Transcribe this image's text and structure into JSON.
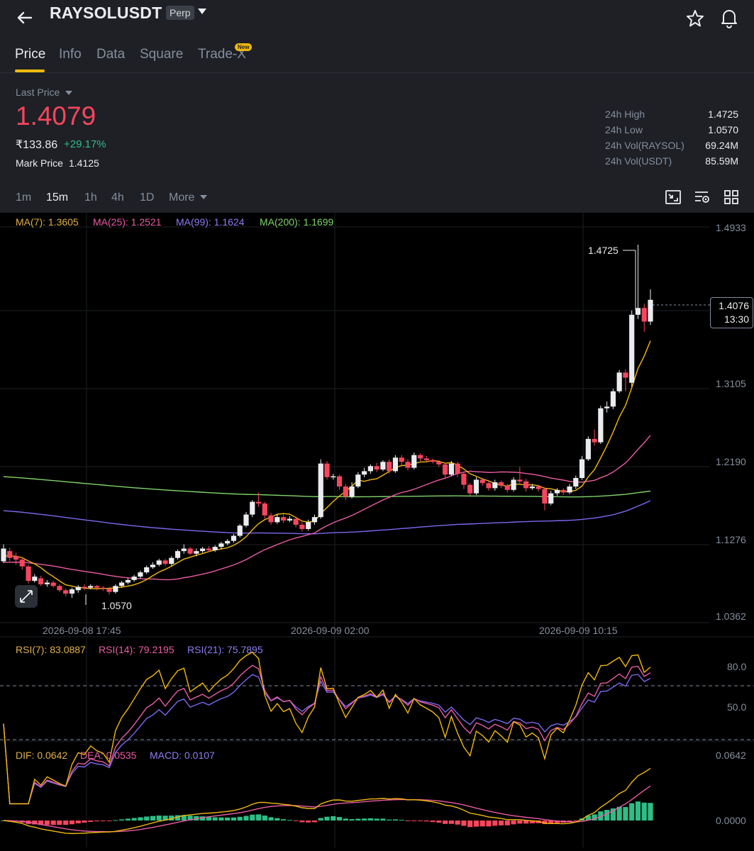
{
  "header": {
    "symbol": "RAYSOLUSDT",
    "contract_type": "Perp"
  },
  "tabs": [
    {
      "label": "Price",
      "active": true
    },
    {
      "label": "Info",
      "active": false
    },
    {
      "label": "Data",
      "active": false
    },
    {
      "label": "Square",
      "active": false
    },
    {
      "label": "Trade-X",
      "active": false,
      "badge": "New"
    }
  ],
  "price": {
    "last_price_label": "Last Price",
    "last_price": "1.4079",
    "fiat_price": "₹133.86",
    "change_pct": "+29.17%",
    "mark_price_label": "Mark Price",
    "mark_price": "1.4125"
  },
  "stats": [
    {
      "label": "24h High",
      "value": "1.4725"
    },
    {
      "label": "24h Low",
      "value": "1.0570"
    },
    {
      "label": "24h Vol(RAYSOL)",
      "value": "69.24M"
    },
    {
      "label": "24h Vol(USDT)",
      "value": "85.59M"
    }
  ],
  "timeframes": [
    {
      "label": "1m",
      "active": false
    },
    {
      "label": "15m",
      "active": true
    },
    {
      "label": "1h",
      "active": false
    },
    {
      "label": "4h",
      "active": false
    },
    {
      "label": "1D",
      "active": false
    },
    {
      "label": "More",
      "active": false
    }
  ],
  "tool_icons": [
    "chart-type-icon",
    "indicator-settings-icon",
    "layout-grid-icon"
  ],
  "colors": {
    "up": "#2ebd85",
    "down": "#f6465d",
    "accent": "#f0b90b",
    "ma7": "#f0b90b",
    "ma25": "#e85ca3",
    "ma99": "#7b68ee",
    "ma200": "#7fd36a"
  },
  "ma_legend": [
    {
      "label": "MA(7): 1.3605",
      "color": "#e0b04a"
    },
    {
      "label": "MA(25): 1.2521",
      "color": "#e85ca3"
    },
    {
      "label": "MA(99): 1.1624",
      "color": "#8d7cf0"
    },
    {
      "label": "MA(200): 1.1699",
      "color": "#7fd36a"
    }
  ],
  "current_price_box": {
    "price": "1.4076",
    "countdown": "13:30"
  },
  "chart_annotations": {
    "high": "1.4725",
    "low": "1.0570"
  },
  "chart_data": [
    {
      "type": "candlestick",
      "title": "",
      "y_axis_ticks": [
        "1.4933",
        "1.4076",
        "1.3105",
        "1.2190",
        "1.1276",
        "1.0362"
      ],
      "x_axis_ticks": [
        "2026-09-08 17:45",
        "2026-09-09 02:00",
        "2026-09-09 10:15"
      ],
      "ylim": [
        1.0362,
        1.4933
      ],
      "high": 1.4725,
      "low": 1.057,
      "last": 1.4076
    },
    {
      "type": "line",
      "title": "",
      "legend": [
        {
          "label": "RSI(7): 83.0887",
          "color": "#e0b04a"
        },
        {
          "label": "RSI(14): 79.2195",
          "color": "#e85ca3"
        },
        {
          "label": "RSI(21): 75.7895",
          "color": "#8d7cf0"
        }
      ],
      "y_axis_ticks": [
        "80.0",
        "50.0"
      ]
    },
    {
      "type": "bar",
      "title": "",
      "legend": [
        {
          "label": "DIF: 0.0642",
          "color": "#e0b04a"
        },
        {
          "label": "DEA: 0.0535",
          "color": "#e85ca3"
        },
        {
          "label": "MACD: 0.0107",
          "color": "#8d7cf0"
        }
      ],
      "y_axis_ticks": [
        "0.0642",
        "0.0000"
      ]
    }
  ]
}
